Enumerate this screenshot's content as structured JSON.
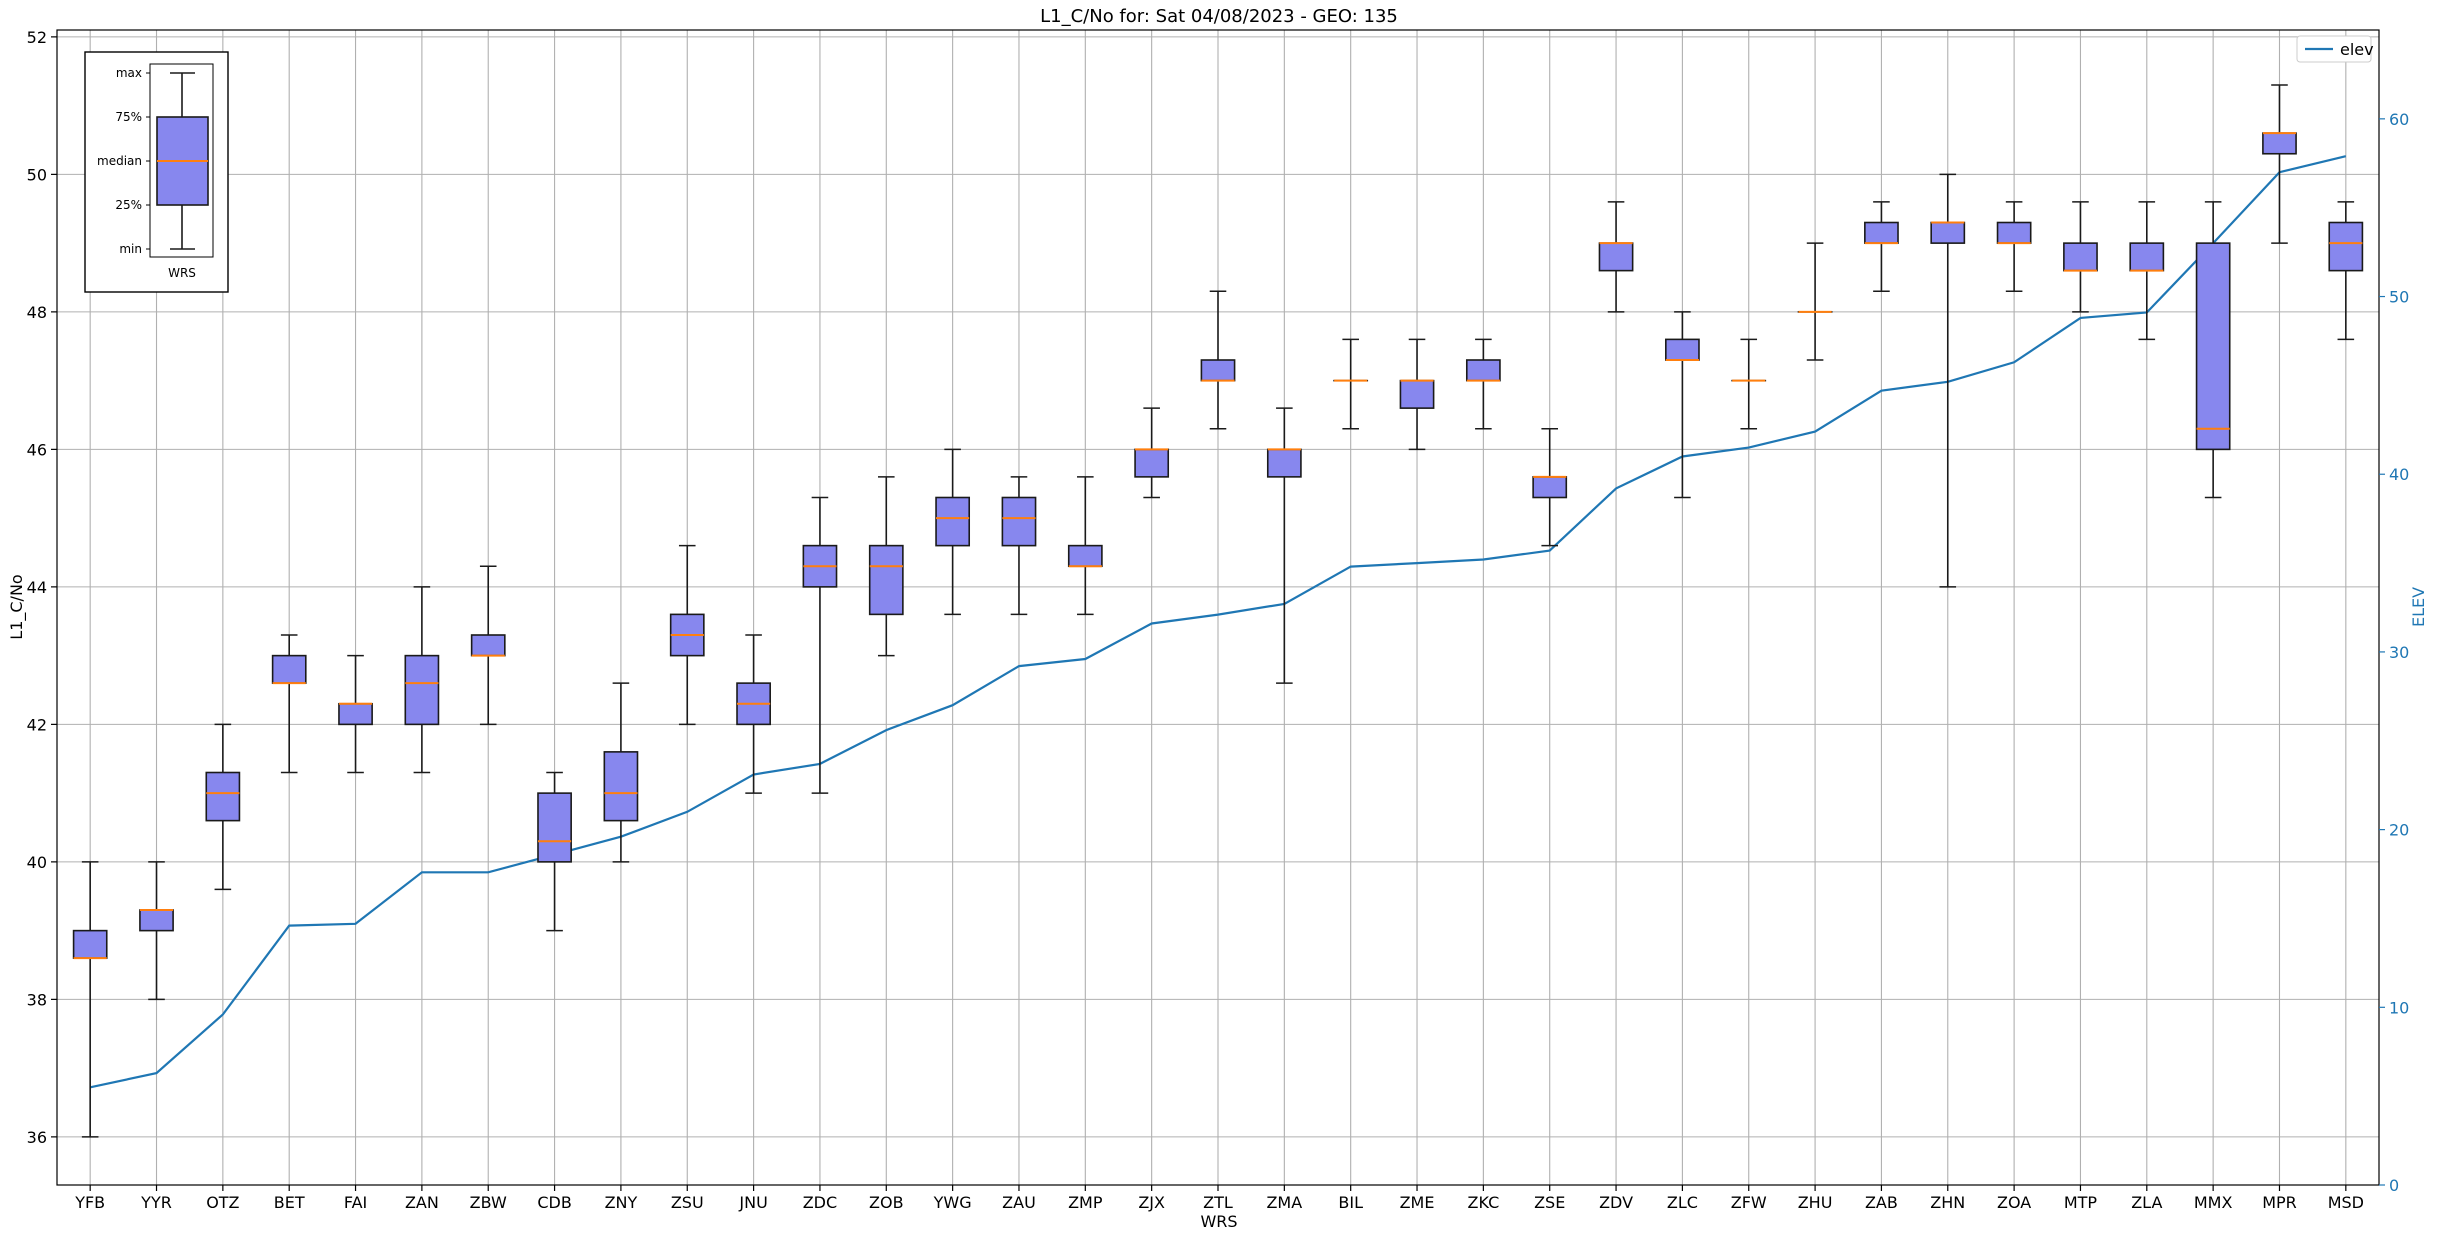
{
  "chart_data": {
    "type": "box",
    "title": "L1_C/No for: Sat 04/08/2023 - GEO: 135",
    "xlabel": "WRS",
    "ylabel": "L1_C/No",
    "y2label": "ELEV",
    "ylim": [
      35.3,
      52.1
    ],
    "y2lim": [
      0,
      65
    ],
    "yticks": [
      36,
      38,
      40,
      42,
      44,
      46,
      48,
      50,
      52
    ],
    "y2ticks": [
      0,
      10,
      20,
      30,
      40,
      50,
      60
    ],
    "grid": true,
    "legend": {
      "position": "top-right",
      "entries": [
        {
          "name": "elev",
          "color": "#1f77b4"
        }
      ]
    },
    "box_color": "#8787ee",
    "median_color": "#ff7f0e",
    "categories": [
      "YFB",
      "YYR",
      "OTZ",
      "BET",
      "FAI",
      "ZAN",
      "ZBW",
      "CDB",
      "ZNY",
      "ZSU",
      "JNU",
      "ZDC",
      "ZOB",
      "YWG",
      "ZAU",
      "ZMP",
      "ZJX",
      "ZTL",
      "ZMA",
      "BIL",
      "ZME",
      "ZKC",
      "ZSE",
      "ZDV",
      "ZLC",
      "ZFW",
      "ZHU",
      "ZAB",
      "ZHN",
      "ZOA",
      "MTP",
      "ZLA",
      "MMX",
      "MPR",
      "MSD"
    ],
    "boxes": [
      {
        "min": 36.0,
        "q1": 38.6,
        "median": 38.6,
        "q3": 39.0,
        "max": 40.0
      },
      {
        "min": 38.0,
        "q1": 39.0,
        "median": 39.3,
        "q3": 39.3,
        "max": 40.0
      },
      {
        "min": 39.6,
        "q1": 40.6,
        "median": 41.0,
        "q3": 41.3,
        "max": 42.0
      },
      {
        "min": 41.3,
        "q1": 42.6,
        "median": 42.6,
        "q3": 43.0,
        "max": 43.3
      },
      {
        "min": 41.3,
        "q1": 42.0,
        "median": 42.3,
        "q3": 42.3,
        "max": 43.0
      },
      {
        "min": 41.3,
        "q1": 42.0,
        "median": 42.6,
        "q3": 43.0,
        "max": 44.0
      },
      {
        "min": 42.0,
        "q1": 43.0,
        "median": 43.0,
        "q3": 43.3,
        "max": 44.3
      },
      {
        "min": 39.0,
        "q1": 40.0,
        "median": 40.3,
        "q3": 41.0,
        "max": 41.3
      },
      {
        "min": 40.0,
        "q1": 40.6,
        "median": 41.0,
        "q3": 41.6,
        "max": 42.6
      },
      {
        "min": 42.0,
        "q1": 43.0,
        "median": 43.3,
        "q3": 43.6,
        "max": 44.6
      },
      {
        "min": 41.0,
        "q1": 42.0,
        "median": 42.3,
        "q3": 42.6,
        "max": 43.3
      },
      {
        "min": 41.0,
        "q1": 44.0,
        "median": 44.3,
        "q3": 44.6,
        "max": 45.3
      },
      {
        "min": 43.0,
        "q1": 43.6,
        "median": 44.3,
        "q3": 44.6,
        "max": 45.6
      },
      {
        "min": 43.6,
        "q1": 44.6,
        "median": 45.0,
        "q3": 45.3,
        "max": 46.0
      },
      {
        "min": 43.6,
        "q1": 44.6,
        "median": 45.0,
        "q3": 45.3,
        "max": 45.6
      },
      {
        "min": 43.6,
        "q1": 44.3,
        "median": 44.3,
        "q3": 44.6,
        "max": 45.6
      },
      {
        "min": 45.3,
        "q1": 45.6,
        "median": 46.0,
        "q3": 46.0,
        "max": 46.6
      },
      {
        "min": 46.3,
        "q1": 47.0,
        "median": 47.0,
        "q3": 47.3,
        "max": 48.3
      },
      {
        "min": 42.6,
        "q1": 45.6,
        "median": 46.0,
        "q3": 46.0,
        "max": 46.6
      },
      {
        "min": 46.3,
        "q1": 47.0,
        "median": 47.0,
        "q3": 47.0,
        "max": 47.6
      },
      {
        "min": 46.0,
        "q1": 46.6,
        "median": 47.0,
        "q3": 47.0,
        "max": 47.6
      },
      {
        "min": 46.3,
        "q1": 47.0,
        "median": 47.0,
        "q3": 47.3,
        "max": 47.6
      },
      {
        "min": 44.6,
        "q1": 45.3,
        "median": 45.6,
        "q3": 45.6,
        "max": 46.3
      },
      {
        "min": 48.0,
        "q1": 48.6,
        "median": 49.0,
        "q3": 49.0,
        "max": 49.6
      },
      {
        "min": 45.3,
        "q1": 47.3,
        "median": 47.3,
        "q3": 47.6,
        "max": 48.0
      },
      {
        "min": 46.3,
        "q1": 47.0,
        "median": 47.0,
        "q3": 47.0,
        "max": 47.6
      },
      {
        "min": 47.3,
        "q1": 48.0,
        "median": 48.0,
        "q3": 48.0,
        "max": 49.0
      },
      {
        "min": 48.3,
        "q1": 49.0,
        "median": 49.0,
        "q3": 49.3,
        "max": 49.6
      },
      {
        "min": 44.0,
        "q1": 49.0,
        "median": 49.3,
        "q3": 49.3,
        "max": 50.0
      },
      {
        "min": 48.3,
        "q1": 49.0,
        "median": 49.0,
        "q3": 49.3,
        "max": 49.6
      },
      {
        "min": 48.0,
        "q1": 48.6,
        "median": 48.6,
        "q3": 49.0,
        "max": 49.6
      },
      {
        "min": 47.6,
        "q1": 48.6,
        "median": 48.6,
        "q3": 49.0,
        "max": 49.6
      },
      {
        "min": 45.3,
        "q1": 46.0,
        "median": 46.3,
        "q3": 49.0,
        "max": 49.6
      },
      {
        "min": 49.0,
        "q1": 50.3,
        "median": 50.6,
        "q3": 50.6,
        "max": 51.3
      },
      {
        "min": 47.6,
        "q1": 48.6,
        "median": 49.0,
        "q3": 49.3,
        "max": 49.6
      }
    ],
    "series": [
      {
        "name": "elev",
        "axis": "right",
        "color": "#1f77b4",
        "values": [
          5.5,
          6.3,
          9.6,
          14.6,
          14.7,
          17.6,
          17.6,
          18.6,
          19.6,
          21.0,
          23.1,
          23.7,
          25.6,
          27.0,
          29.2,
          29.6,
          31.6,
          32.1,
          32.7,
          34.8,
          35.0,
          35.2,
          35.7,
          39.2,
          41.0,
          41.5,
          42.4,
          44.7,
          45.2,
          46.3,
          48.8,
          49.1,
          53.0,
          57.0,
          57.9
        ]
      }
    ],
    "inset": {
      "labels": [
        "max",
        "75%",
        "median",
        "25%",
        "min"
      ],
      "xlabel": "WRS"
    }
  }
}
